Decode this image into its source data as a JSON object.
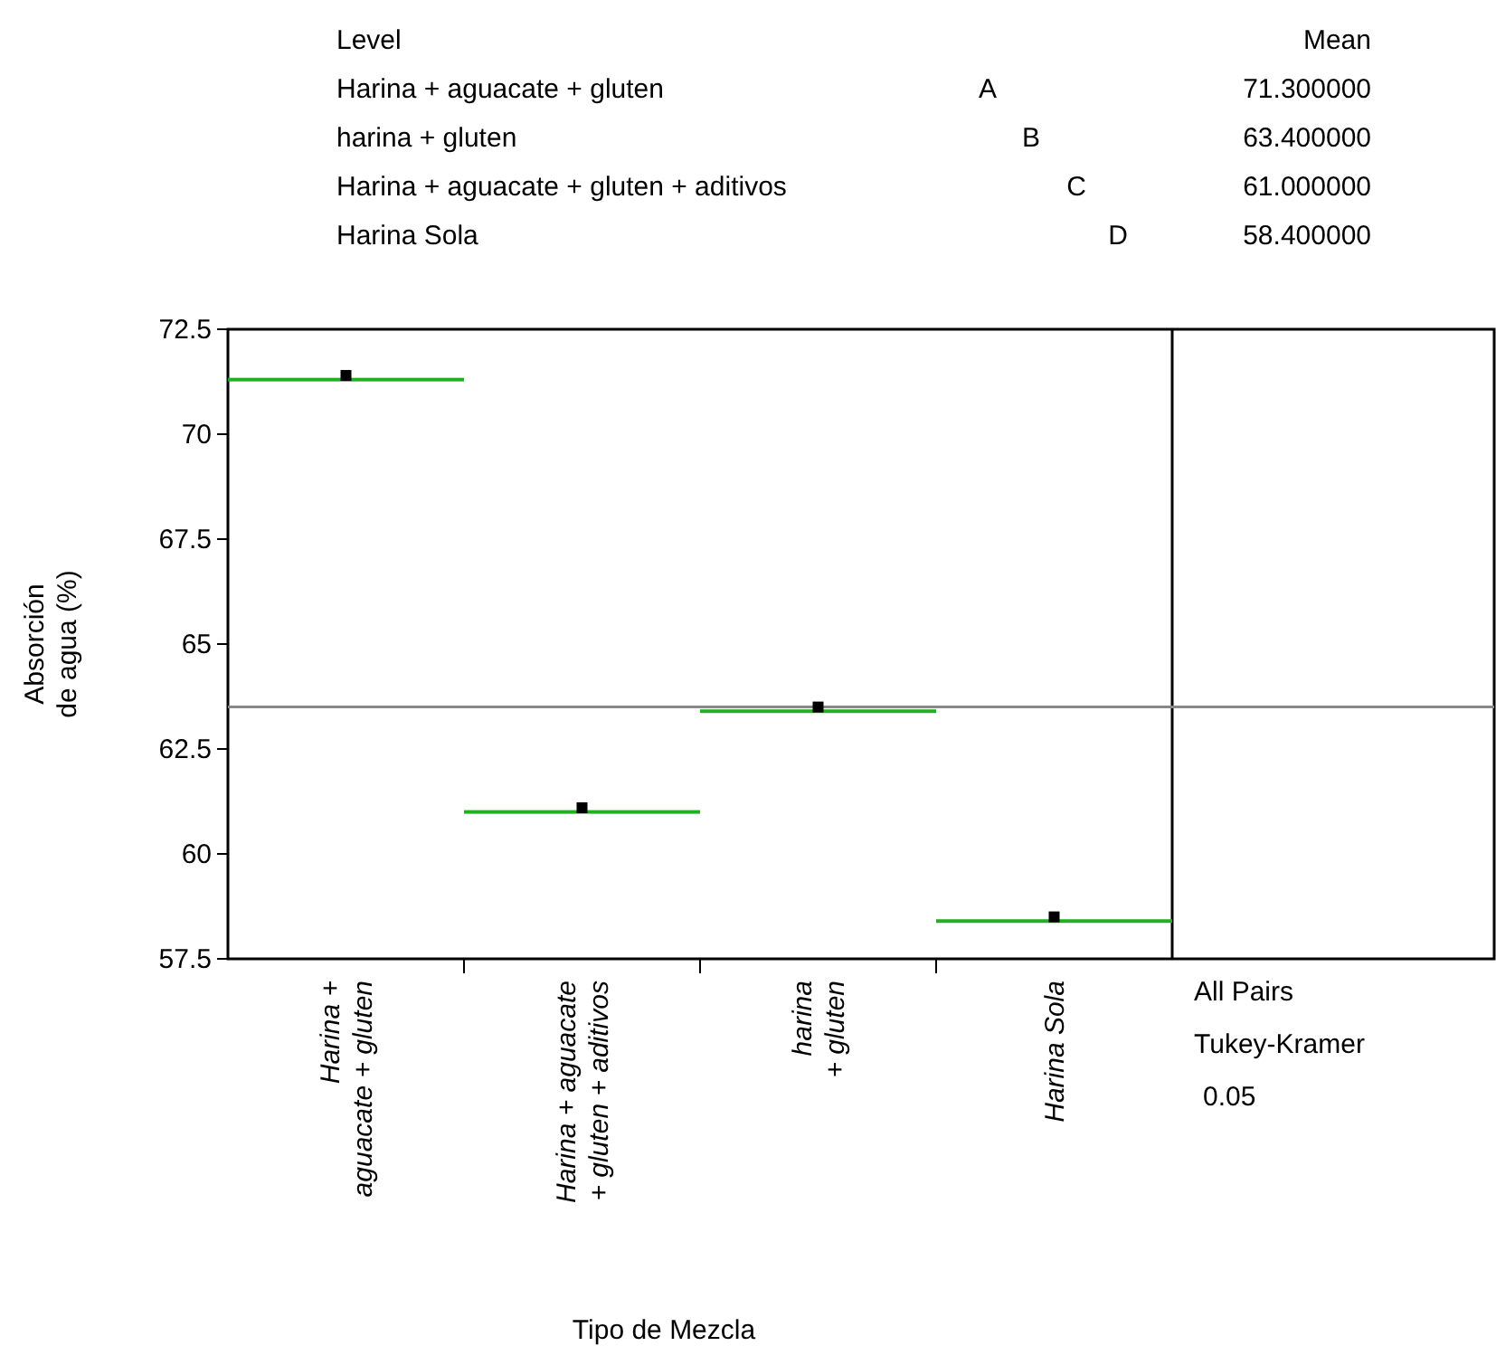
{
  "chart_data": [
    {
      "type": "other",
      "xlabel": "Level",
      "ylabel": "Mean",
      "categories": [
        "Harina + aguacate + gluten",
        "harina + gluten",
        "Harina + aguacate + gluten + aditivos",
        "Harina Sola"
      ],
      "value_labels": [
        "71.300000",
        "63.400000",
        "61.000000",
        "58.400000"
      ],
      "annotations": [
        "A",
        "B",
        "C",
        "D"
      ]
    },
    {
      "type": "scatter",
      "xlabel": "Tipo de Mezcla",
      "ylabel": "Absorción\nde agua (%)",
      "categories": [
        "Harina +\naguacate + gluten",
        "Harina + aguacate\n+ gluten + aditivos",
        "harina\n+ gluten",
        "Harina Sola"
      ],
      "ylim": [
        57.5,
        72.5
      ],
      "yticks": [
        57.5,
        60,
        62.5,
        65,
        67.5,
        70,
        72.5
      ],
      "marker": "square",
      "grid": false,
      "series": [
        {
          "type": "bar",
          "color": "#22b022",
          "base": [
            71.3,
            61.0,
            63.4,
            58.4
          ],
          "values": [
            0,
            0,
            0,
            0
          ]
        },
        {
          "type": "scatter",
          "color": "#000000",
          "values": [
            71.4,
            61.1,
            63.5,
            58.5
          ]
        }
      ],
      "ref_lines": [
        {
          "axis": "y",
          "value": 63.5,
          "color": "#888888"
        }
      ],
      "annotations": [
        "All Pairs",
        "Tukey-Kramer",
        "0.05"
      ]
    }
  ]
}
